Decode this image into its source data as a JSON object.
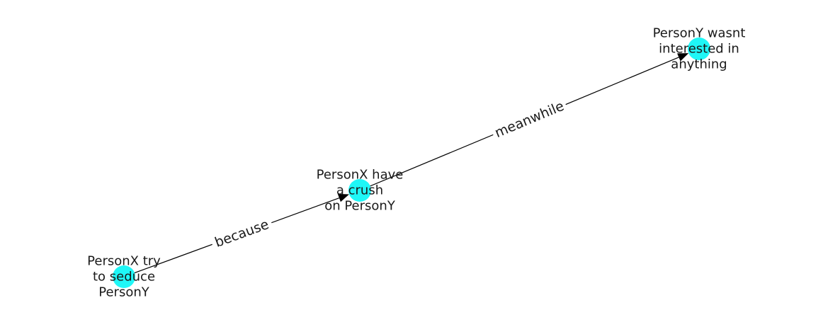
{
  "colors": {
    "node_fill": "#1ff7f7",
    "edge": "#000000",
    "text": "#1a1a1a",
    "background": "#ffffff"
  },
  "nodes": [
    {
      "id": "n1",
      "lines": [
        "PersonX try",
        "to seduce",
        "PersonY"
      ]
    },
    {
      "id": "n2",
      "lines": [
        "PersonX have",
        "a crush",
        "on PersonY"
      ]
    },
    {
      "id": "n3",
      "lines": [
        "PersonY wasnt",
        "interested in",
        "anything"
      ]
    }
  ],
  "edges": [
    {
      "from": "n1",
      "to": "n2",
      "label": "because"
    },
    {
      "from": "n2",
      "to": "n3",
      "label": "meanwhile"
    }
  ]
}
